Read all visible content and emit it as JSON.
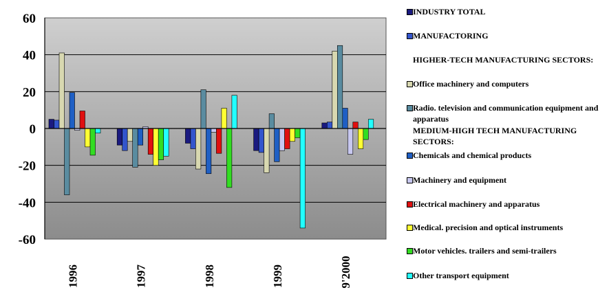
{
  "chart_data": {
    "type": "bar",
    "categories": [
      "1996",
      "1997",
      "1998",
      "1999",
      "9'2000"
    ],
    "ylim": [
      -60,
      60
    ],
    "yticks": [
      -60,
      -40,
      -20,
      0,
      20,
      40,
      60
    ],
    "grid": true,
    "legend_position": "right",
    "series": [
      {
        "name": "INDUSTRY TOTAL",
        "color": "#1a1a80",
        "values": [
          5,
          -9,
          -8,
          -12,
          3
        ]
      },
      {
        "name": "MANUFACTORING",
        "color": "#3355cc",
        "values": [
          4.5,
          -12,
          -11,
          -13,
          3.5
        ]
      },
      {
        "name": "Office machinery and computers",
        "color": "#d8d8b0",
        "values": [
          41,
          -7,
          -22,
          -24,
          42
        ]
      },
      {
        "name": "Radio. television and communication equipment and apparatus",
        "color": "#5a8ca0",
        "values": [
          -36,
          -21,
          21,
          8,
          45
        ]
      },
      {
        "name": "Chemicals and chemical products",
        "color": "#1f5fc4",
        "values": [
          19.5,
          -9,
          -24.5,
          -18,
          11
        ]
      },
      {
        "name": "Machinery and equipment",
        "color": "#c8c8f0",
        "values": [
          -1,
          1,
          -2,
          -12,
          -14
        ]
      },
      {
        "name": "Electrical machinery and apparatus",
        "color": "#e01010",
        "values": [
          9.5,
          -14,
          -13.5,
          -11,
          3.5
        ]
      },
      {
        "name": "Medical. precision and optical instruments",
        "color": "#ffff33",
        "values": [
          -10,
          -20,
          11,
          -7,
          -11
        ]
      },
      {
        "name": "Motor vehicles. trailers and semi-trailers",
        "color": "#33dd22",
        "values": [
          -14.5,
          -17,
          -32,
          -5,
          -6
        ]
      },
      {
        "name": "Other transport equipment",
        "color": "#22ffff",
        "values": [
          -2.5,
          -15,
          18,
          -54,
          5
        ]
      }
    ]
  },
  "legend": {
    "items": [
      {
        "kind": "series",
        "series": 0
      },
      {
        "kind": "series",
        "series": 1
      },
      {
        "kind": "header",
        "text": "HIGHER-TECH MANUFACTURING SECTORS:"
      },
      {
        "kind": "series",
        "series": 2
      },
      {
        "kind": "series",
        "series": 3
      },
      {
        "kind": "header",
        "text": "MEDIUM-HIGH TECH MANUFACTURING SECTORS:"
      },
      {
        "kind": "series",
        "series": 4
      },
      {
        "kind": "series",
        "series": 5
      },
      {
        "kind": "series",
        "series": 6
      },
      {
        "kind": "series",
        "series": 7
      },
      {
        "kind": "series",
        "series": 8
      },
      {
        "kind": "series",
        "series": 9
      }
    ]
  }
}
